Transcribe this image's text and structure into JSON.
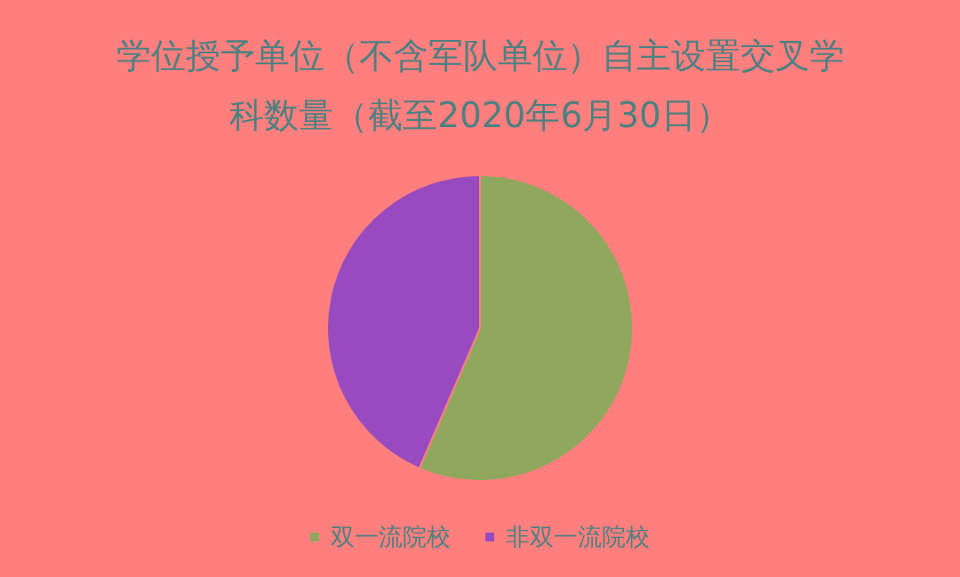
{
  "chart_data": {
    "type": "pie",
    "title": "学位授予单位（不含军队单位）自主设置交叉学科数量（截至2020年6月30日）",
    "categories": [
      "双一流院校",
      "非双一流院校"
    ],
    "values": [
      56.5,
      43.5
    ],
    "colors": [
      "#8fa85e",
      "#984bbf"
    ],
    "legend": "bottom"
  }
}
